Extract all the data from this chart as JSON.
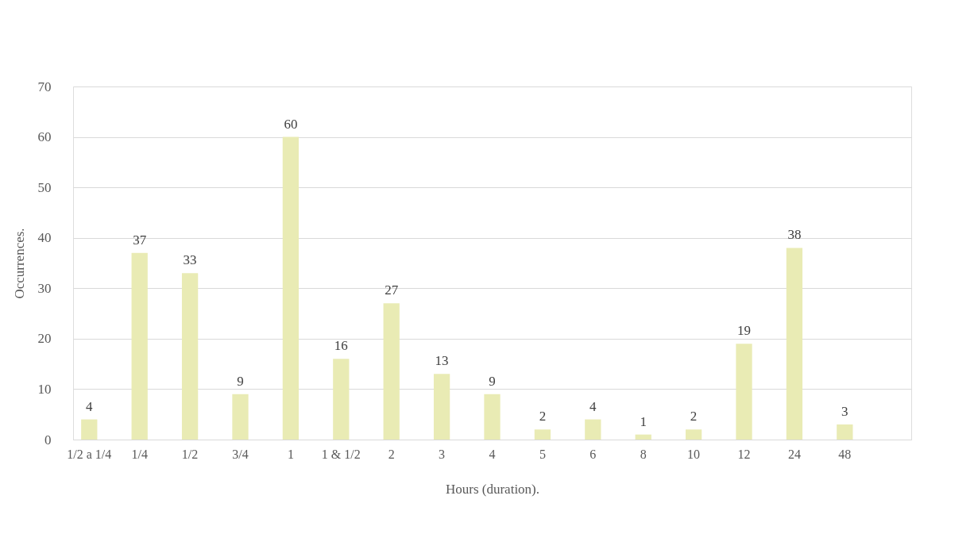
{
  "chart_data": {
    "type": "bar",
    "xlabel": "Hours (duration).",
    "ylabel": "Occurrences.",
    "categories": [
      "1/2 a 1/4",
      "1/4",
      "1/2",
      "3/4",
      "1",
      "1 & 1/2",
      "2",
      "3",
      "4",
      "5",
      "6",
      "8",
      "10",
      "12",
      "24",
      "48",
      null
    ],
    "values": [
      4,
      37,
      33,
      9,
      60,
      16,
      27,
      13,
      9,
      2,
      4,
      1,
      2,
      19,
      38,
      3,
      null
    ],
    "color": "#e9ebb4",
    "ylim": [
      0,
      70
    ],
    "yticks": [
      0,
      10,
      20,
      30,
      40,
      50,
      60,
      70
    ],
    "grid": "y",
    "data_labels": true
  }
}
